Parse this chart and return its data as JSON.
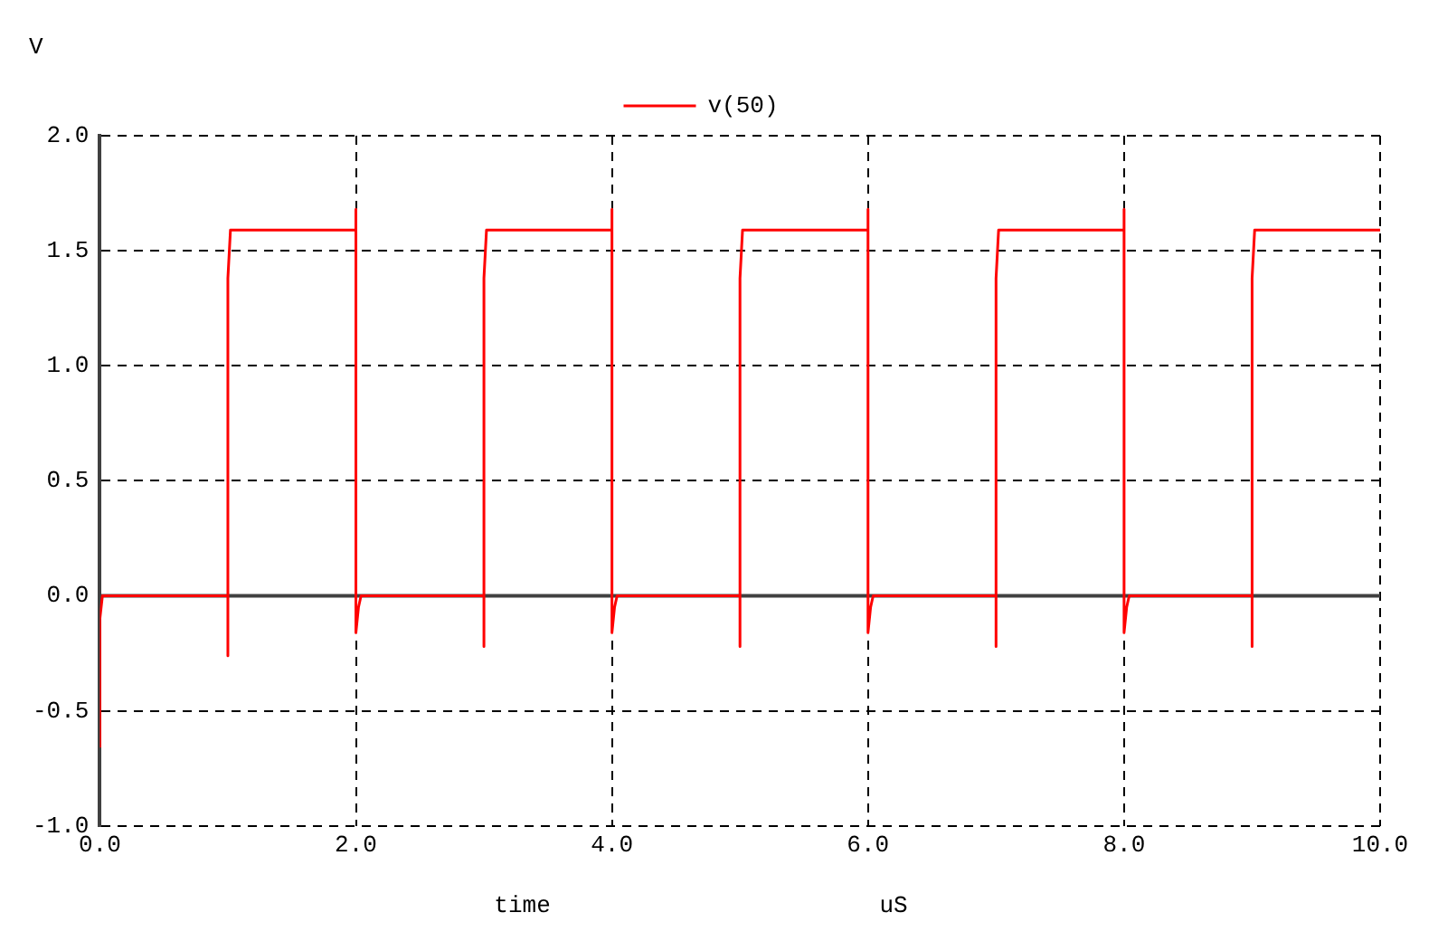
{
  "chart_data": {
    "type": "line",
    "xlabel": "time",
    "ylabel": "V",
    "annotations": [
      "uS"
    ],
    "xlim": [
      0,
      10
    ],
    "xticks": [
      {
        "value": 0,
        "label": "0.0"
      },
      {
        "value": 2,
        "label": "2.0"
      },
      {
        "value": 4,
        "label": "4.0"
      },
      {
        "value": 6,
        "label": "6.0"
      },
      {
        "value": 8,
        "label": "8.0"
      },
      {
        "value": 10,
        "label": "10.0"
      }
    ],
    "ylim": [
      -1,
      2
    ],
    "yticks": [
      {
        "value": -1,
        "label": "-1.0"
      },
      {
        "value": -0.5,
        "label": "-0.5"
      },
      {
        "value": 0,
        "label": "0.0"
      },
      {
        "value": 0.5,
        "label": "0.5"
      },
      {
        "value": 1,
        "label": "1.0"
      },
      {
        "value": 1.5,
        "label": "1.5"
      },
      {
        "value": 2,
        "label": "2.0"
      }
    ],
    "grid": true,
    "legend": "top",
    "marker": "none",
    "line_style": "solid",
    "ref_lines": [
      {
        "axis": "y",
        "value": 0,
        "color": "#404040"
      }
    ],
    "series": [
      {
        "name": "v(50)",
        "color": "#ff0000",
        "x": [
          0,
          0,
          0.02,
          1,
          1,
          1,
          1.02,
          2,
          2,
          2,
          2.02,
          2.04,
          3,
          3,
          3,
          3.02,
          4,
          4,
          4,
          4.02,
          4.04,
          5,
          5,
          5,
          5.02,
          6,
          6,
          6,
          6.02,
          6.04,
          7,
          7,
          7,
          7.02,
          8,
          8,
          8,
          8.02,
          8.04,
          9,
          9,
          9,
          9.02,
          10
        ],
        "values": [
          -0.66,
          -0.1,
          0,
          0,
          -0.26,
          1.38,
          1.59,
          1.59,
          1.68,
          -0.16,
          -0.05,
          0,
          0,
          -0.22,
          1.38,
          1.59,
          1.59,
          1.68,
          -0.16,
          -0.05,
          0,
          0,
          -0.22,
          1.38,
          1.59,
          1.59,
          1.68,
          -0.16,
          -0.05,
          0,
          0,
          -0.22,
          1.38,
          1.59,
          1.59,
          1.68,
          -0.16,
          -0.05,
          0,
          0,
          -0.22,
          1.38,
          1.59,
          1.59
        ]
      }
    ]
  }
}
